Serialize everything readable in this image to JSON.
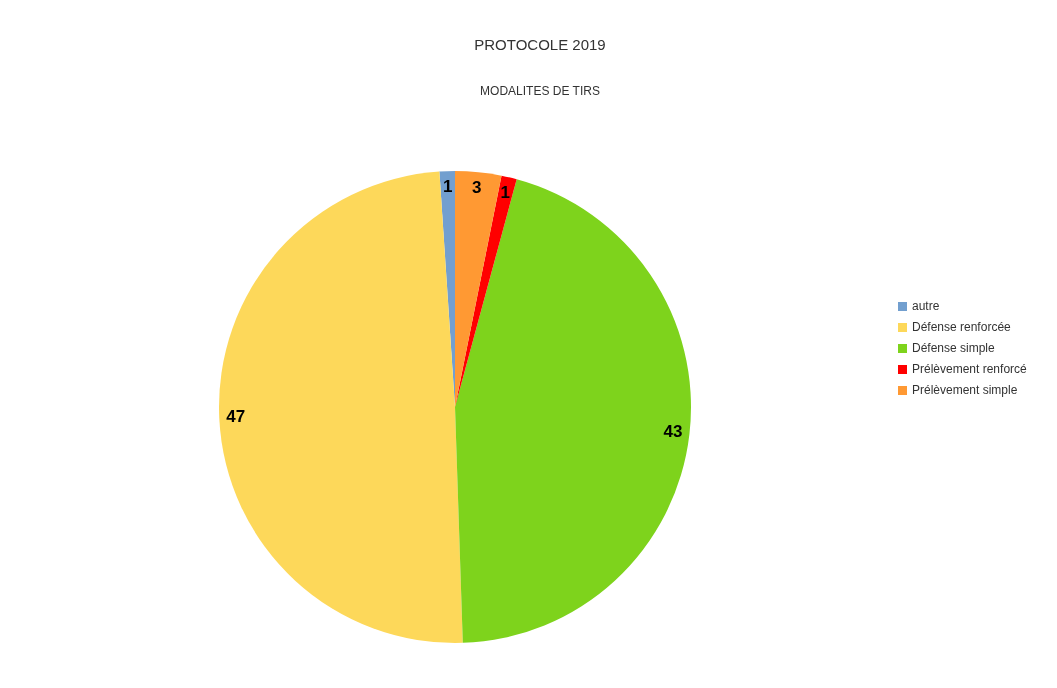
{
  "chart_data": {
    "type": "pie",
    "title": "PROTOCOLE 2019",
    "subtitle": "MODALITES DE TIRS",
    "categories": [
      "autre",
      "Défense renforcée",
      "Défense simple",
      "Prélèvement renforcé",
      "Prélèvement simple"
    ],
    "values": [
      1,
      47,
      43,
      1,
      3
    ],
    "colors": [
      "#729fcf",
      "#fdd85a",
      "#7ed31c",
      "#ff0000",
      "#ff9933"
    ],
    "data_labels": true,
    "legend": "right"
  }
}
